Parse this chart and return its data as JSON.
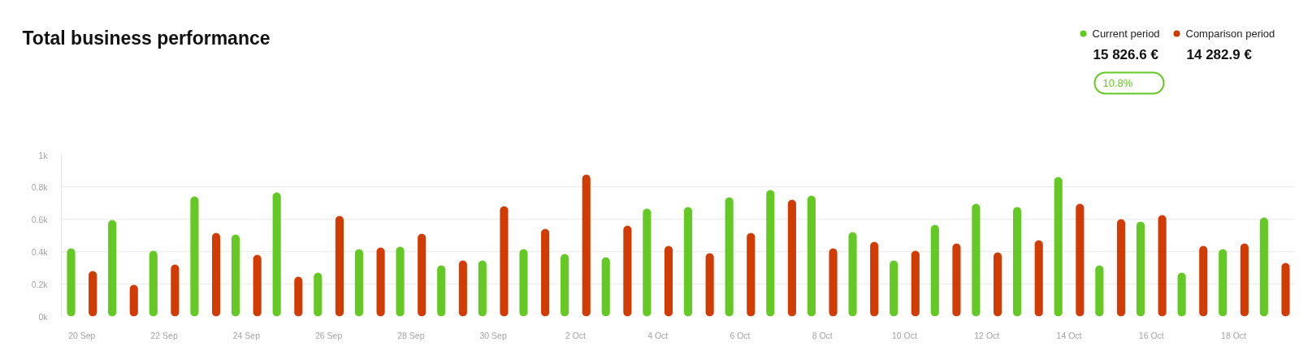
{
  "chart_data": {
    "type": "bar",
    "title": "Total business performance",
    "categories": [
      "20 Sep",
      null,
      "22 Sep",
      null,
      "24 Sep",
      null,
      "26 Sep",
      null,
      "28 Sep",
      null,
      "30 Sep",
      null,
      "2 Oct",
      null,
      "4 Oct",
      null,
      "6 Oct",
      null,
      "8 Oct",
      null,
      "10 Oct",
      null,
      "12 Oct",
      null,
      "14 Oct",
      null,
      "16 Oct",
      null,
      "18 Oct",
      null
    ],
    "series": [
      {
        "name": "Current period",
        "color": "#64c925",
        "values": [
          420,
          595,
          405,
          740,
          505,
          765,
          270,
          415,
          430,
          315,
          345,
          415,
          385,
          365,
          665,
          675,
          735,
          780,
          745,
          520,
          345,
          565,
          695,
          675,
          860,
          315,
          585,
          270,
          415,
          610
        ]
      },
      {
        "name": "Comparison period",
        "color": "#d13c05",
        "values": [
          280,
          195,
          320,
          515,
          380,
          245,
          620,
          425,
          510,
          345,
          680,
          540,
          875,
          560,
          435,
          390,
          515,
          720,
          420,
          460,
          405,
          450,
          395,
          470,
          695,
          600,
          625,
          435,
          450,
          330
        ]
      }
    ],
    "ylim": [
      0,
      1000
    ],
    "yticks": [
      {
        "value": 0,
        "label": "0k"
      },
      {
        "value": 200,
        "label": "0.2k"
      },
      {
        "value": 400,
        "label": "0.4k"
      },
      {
        "value": 600,
        "label": "0.6k"
      },
      {
        "value": 800,
        "label": "0.8k"
      },
      {
        "value": 1000,
        "label": "1k"
      }
    ],
    "grid": "y",
    "legend": "top right",
    "annotations": [
      "15 826.6 €",
      "14 282.9 €",
      "10.8%"
    ]
  }
}
